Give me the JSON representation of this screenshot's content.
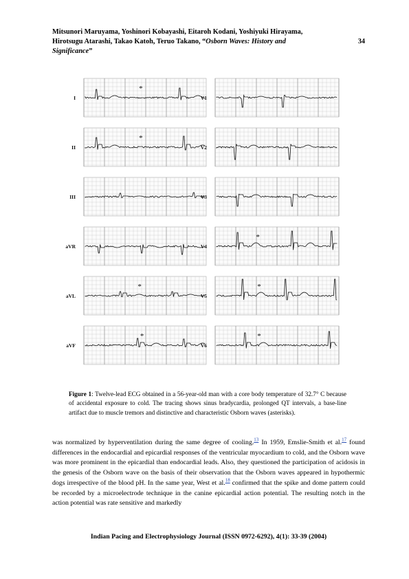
{
  "header": {
    "authors_line1": "Mitsunori Maruyama, Yoshinori Kobayashi, Eitaroh Kodani, Yoshiyuki Hirayama,",
    "authors_line2": "Hirotsugu Atarashi, Takao Katoh, Teruo Takano, “",
    "title_italic_1": "Osborn Waves: History and",
    "title_italic_2": "Significance",
    "title_close": "”",
    "page_number": "34"
  },
  "figure": {
    "left_leads": [
      "I",
      "II",
      "III",
      "aVR",
      "aVL",
      "aVF"
    ],
    "right_leads": [
      "V1",
      "V2",
      "V3",
      "V4",
      "V5",
      "V6"
    ],
    "asterisk": "*"
  },
  "caption": {
    "label": "Figure 1",
    "text": ": Twelve-lead ECG obtained in a 56-year-old man with a core body temperature of 32.7° C because of accidental exposure to cold. The tracing shows sinus bradycardia, prolonged QT intervals, a base-line artifact due to muscle tremors and distinctive and characteristic Osborn waves (asterisks)."
  },
  "body": {
    "p1": "was normalized by hyperventilation during the same degree of cooling.",
    "ref1": "13",
    "p2": " In 1959, Emslie-Smith et al.",
    "ref2": "17",
    "p3": " found differences in the endocardial and epicardial responses of the ventricular myocardium to cold, and the Osborn wave was more prominent in the epicardial than endocardial leads. Also, they questioned the participation of acidosis in the genesis of the Osborn wave on the basis of their observation that the Osborn waves appeared in hypothermic dogs irrespective of the blood pH. In the same year, West et al.",
    "ref3": "18",
    "p4": " confirmed that the spike and dome pattern could be recorded by a microelectrode technique in the canine epicardial action potential. The resulting notch in the action potential was rate sensitive and  markedly"
  },
  "footer": {
    "text": "Indian Pacing and Electrophysiology Journal (ISSN 0972-6292), 4(1): 33-39 (2004)"
  }
}
